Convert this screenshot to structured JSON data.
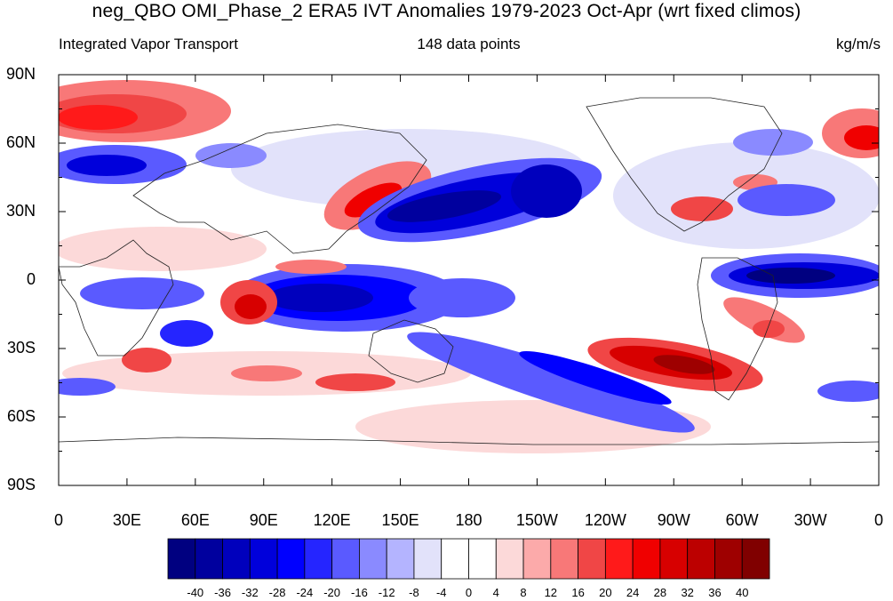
{
  "title": "neg_QBO OMI_Phase_2 ERA5 IVT Anomalies 1979-2023 Oct-Apr (wrt fixed climos)",
  "subtitle_left": "Integrated Vapor Transport",
  "subtitle_center": "148 data points",
  "subtitle_right": "kg/m/s",
  "map": {
    "projection": "cylindrical-equidistant",
    "lon_range": [
      0,
      360
    ],
    "lat_range": [
      -90,
      90
    ],
    "lat_tick_labels": [
      "90N",
      "60N",
      "30N",
      "0",
      "30S",
      "60S",
      "90S"
    ],
    "lon_tick_labels": [
      "0",
      "30E",
      "60E",
      "90E",
      "120E",
      "150E",
      "180",
      "150W",
      "120W",
      "90W",
      "60W",
      "30W",
      "0"
    ]
  },
  "colorbar": {
    "levels": [
      "-40",
      "-36",
      "-32",
      "-28",
      "-24",
      "-20",
      "-16",
      "-12",
      "-8",
      "-4",
      "0",
      "4",
      "8",
      "12",
      "16",
      "20",
      "24",
      "28",
      "32",
      "36",
      "40"
    ],
    "colors": [
      "#000080",
      "#00009e",
      "#0000bd",
      "#0000db",
      "#0000ff",
      "#2525ff",
      "#5a5aff",
      "#8a8aff",
      "#b4b4ff",
      "#e2e2fa",
      "#ffffff",
      "#ffffff",
      "#fcd9d9",
      "#fcaaaa",
      "#f87878",
      "#f04646",
      "#ff1a1a",
      "#f00000",
      "#d70000",
      "#bc0000",
      "#9e0000",
      "#800000"
    ]
  }
}
